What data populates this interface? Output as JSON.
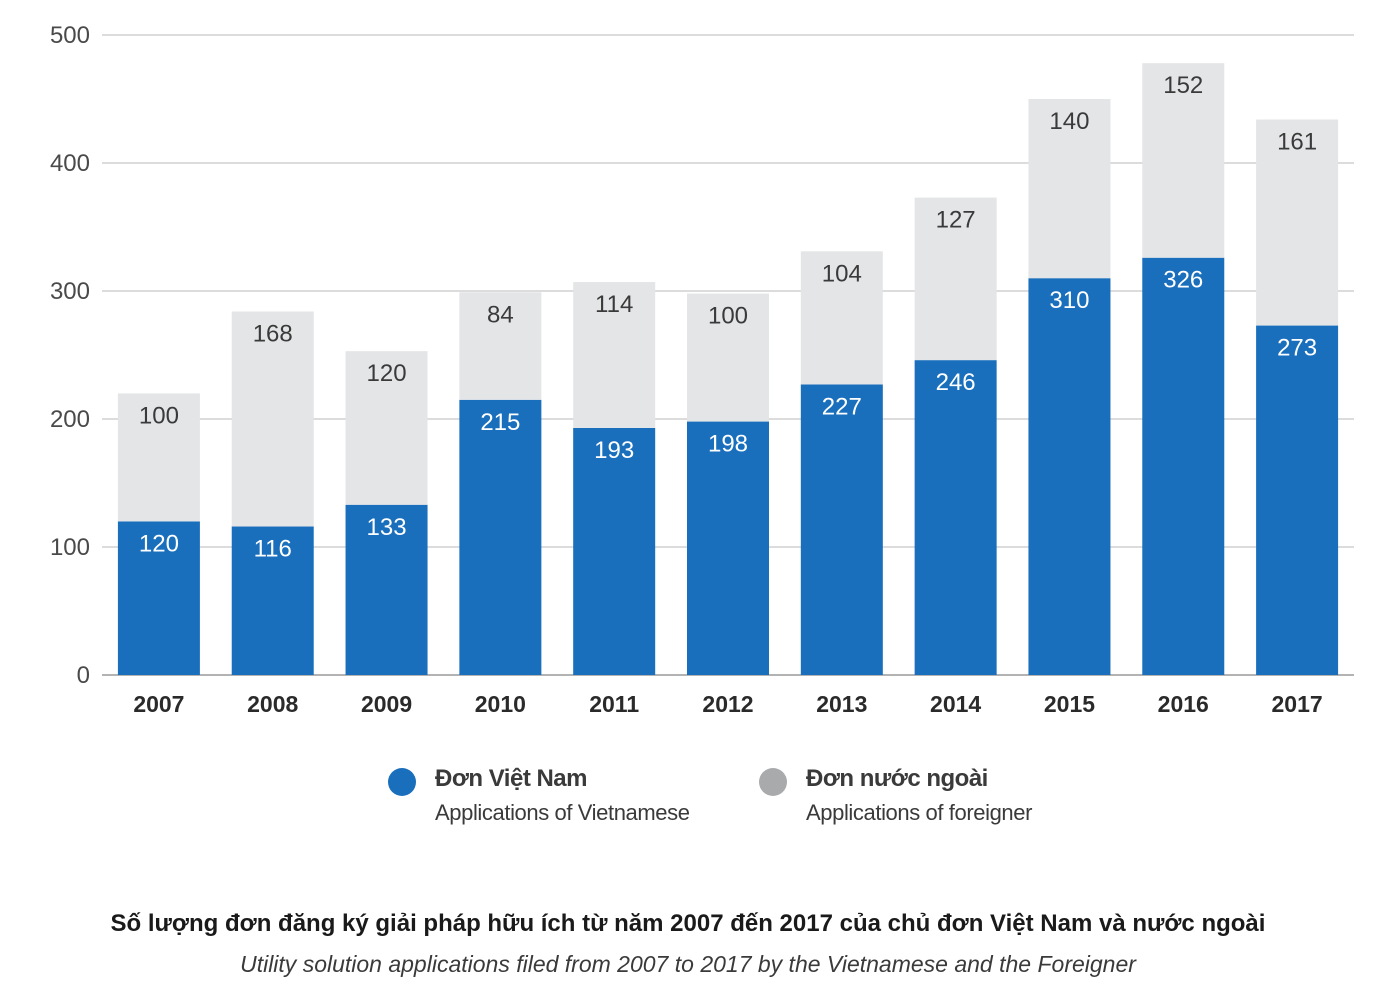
{
  "chart_data": {
    "type": "bar",
    "stacked": true,
    "categories": [
      "2007",
      "2008",
      "2009",
      "2010",
      "2011",
      "2012",
      "2013",
      "2014",
      "2015",
      "2016",
      "2017"
    ],
    "series": [
      {
        "name": "Đơn Việt Nam",
        "color": "#1a6fbd",
        "label_color": "#ffffff",
        "values": [
          120,
          116,
          133,
          215,
          193,
          198,
          227,
          246,
          310,
          326,
          273
        ]
      },
      {
        "name": "Đơn nước ngoài",
        "color": "#e4e5e7",
        "label_color": "#3a3a3a",
        "values": [
          100,
          168,
          120,
          84,
          114,
          100,
          104,
          127,
          140,
          152,
          161
        ]
      }
    ],
    "yticks": [
      0,
      100,
      200,
      300,
      400,
      500
    ],
    "ylim": [
      0,
      500
    ],
    "grid": true
  },
  "legend": {
    "items": [
      {
        "title": "Đơn Việt Nam",
        "subtitle": "Applications of Vietnamese",
        "color": "#1a6fbd"
      },
      {
        "title": "Đơn nước ngoài",
        "subtitle": "Applications of foreigner",
        "color": "#a9aaac"
      }
    ]
  },
  "caption": {
    "main": "Số lượng đơn đăng ký giải pháp hữu ích từ năm 2007 đến 2017 của chủ đơn Việt Nam và nước ngoài",
    "sub": "Utility solution applications filed from 2007 to 2017 by the Vietnamese and the Foreigner"
  }
}
